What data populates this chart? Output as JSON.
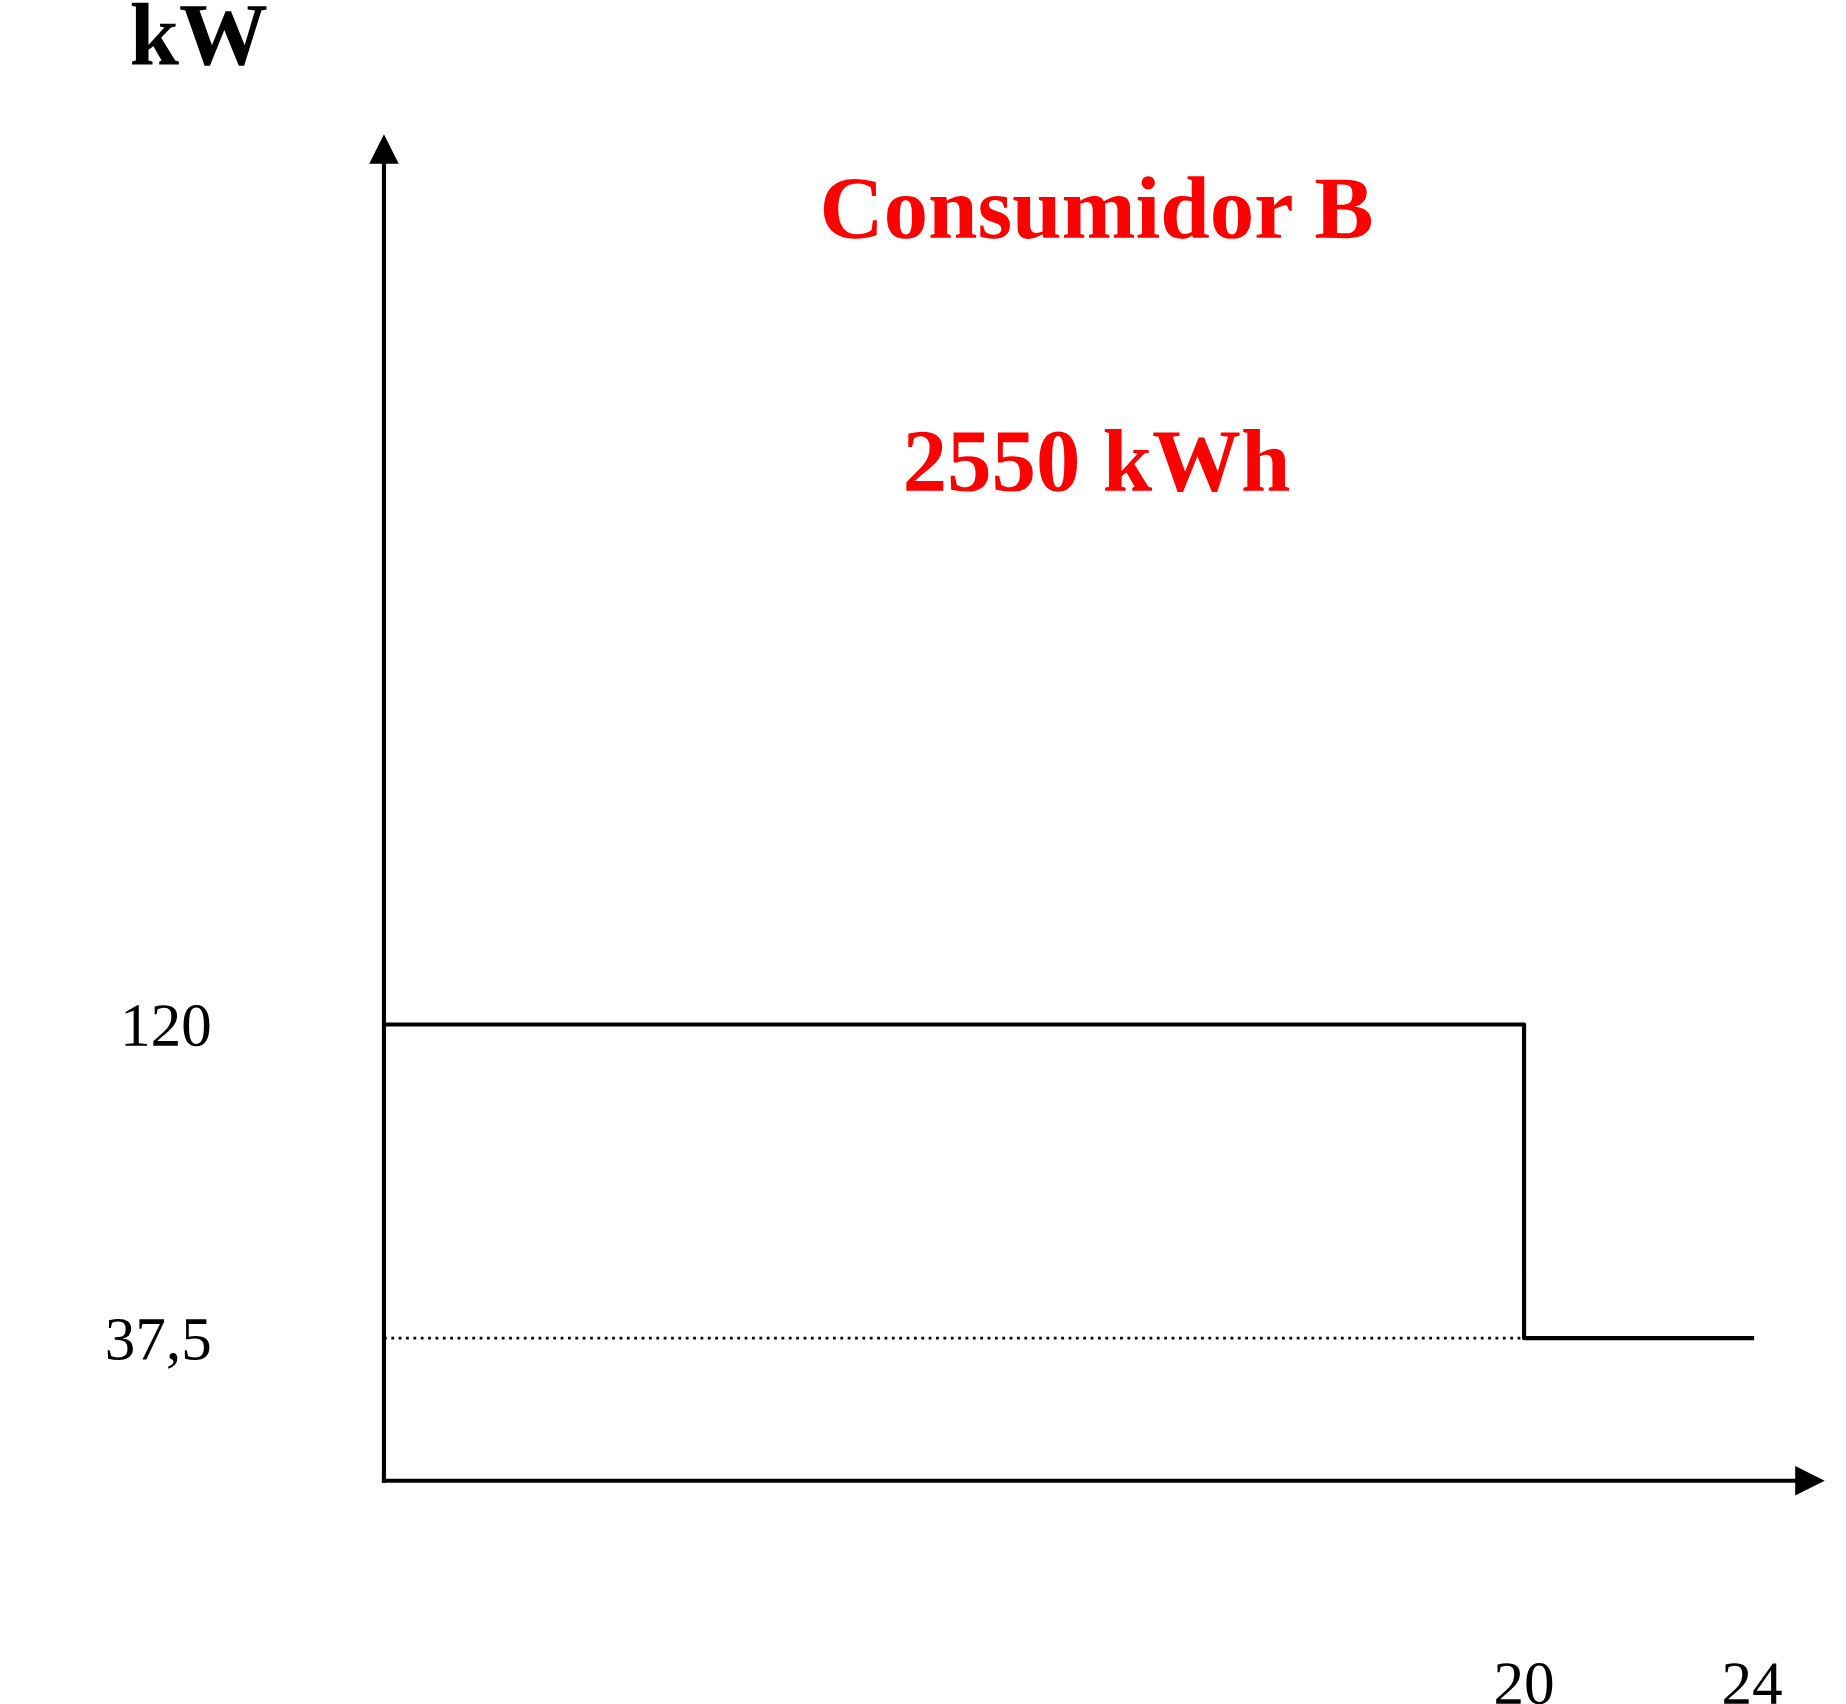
{
  "chart_data": {
    "type": "step",
    "title": "Consumidor B",
    "subtitle": "2550 kWh",
    "ylabel": "kW",
    "x": [
      0,
      20,
      24
    ],
    "series": [
      {
        "color": "#000000",
        "values": [
          120,
          37.5,
          37.5
        ]
      }
    ],
    "ref_lines": [
      {
        "axis": "y",
        "value": 37.5,
        "label": null,
        "color": "#000000",
        "line_style": "dotted"
      }
    ],
    "xlim": [
      0,
      25
    ],
    "ylim": [
      0,
      350
    ],
    "xticks": [
      20,
      24
    ],
    "yticks": [
      {
        "value": 37.5,
        "label": "37,5"
      },
      120
    ],
    "grid": false,
    "legend": false,
    "marker": "none",
    "line_style": "solid"
  }
}
